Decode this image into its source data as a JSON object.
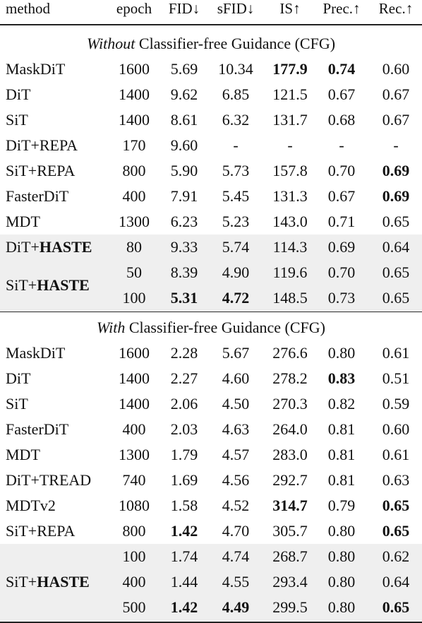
{
  "headers": [
    "method",
    "epoch",
    "FID↓",
    "sFID↓",
    "IS↑",
    "Prec.↑",
    "Rec.↑"
  ],
  "sections": [
    {
      "title_em": "Without",
      "title_rest": " Classifier-free Guidance (CFG)",
      "rows": [
        {
          "method": "MaskDiT",
          "cells": [
            "1600",
            "5.69",
            "10.34",
            "177.9",
            "0.74",
            "0.60"
          ],
          "bold": [
            false,
            false,
            false,
            true,
            true,
            false
          ]
        },
        {
          "method": "DiT",
          "cells": [
            "1400",
            "9.62",
            "6.85",
            "121.5",
            "0.67",
            "0.67"
          ],
          "bold": [
            false,
            false,
            false,
            false,
            false,
            false
          ]
        },
        {
          "method": "SiT",
          "cells": [
            "1400",
            "8.61",
            "6.32",
            "131.7",
            "0.68",
            "0.67"
          ],
          "bold": [
            false,
            false,
            false,
            false,
            false,
            false
          ]
        },
        {
          "method": "DiT+REPA",
          "cells": [
            "170",
            "9.60",
            "-",
            "-",
            "-",
            "-"
          ],
          "bold": [
            false,
            false,
            false,
            false,
            false,
            false
          ]
        },
        {
          "method": "SiT+REPA",
          "cells": [
            "800",
            "5.90",
            "5.73",
            "157.8",
            "0.70",
            "0.69"
          ],
          "bold": [
            false,
            false,
            false,
            false,
            false,
            true
          ]
        },
        {
          "method": "FasterDiT",
          "cells": [
            "400",
            "7.91",
            "5.45",
            "131.3",
            "0.67",
            "0.69"
          ],
          "bold": [
            false,
            false,
            false,
            false,
            false,
            true
          ]
        },
        {
          "method": "MDT",
          "cells": [
            "1300",
            "6.23",
            "5.23",
            "143.0",
            "0.71",
            "0.65"
          ],
          "bold": [
            false,
            false,
            false,
            false,
            false,
            false
          ]
        },
        {
          "method_plain": "DiT+",
          "method_bold": "HASTE",
          "shade": true,
          "cells": [
            "80",
            "9.33",
            "5.74",
            "114.3",
            "0.69",
            "0.64"
          ],
          "bold": [
            false,
            false,
            false,
            false,
            false,
            false
          ]
        },
        {
          "method_plain": "SiT+",
          "method_bold": "HASTE",
          "shade": true,
          "merged_start": 2,
          "cells": [
            "50",
            "8.39",
            "4.90",
            "119.6",
            "0.70",
            "0.65"
          ],
          "bold": [
            false,
            false,
            false,
            false,
            false,
            false
          ]
        },
        {
          "shade": true,
          "merged_cont": true,
          "cells": [
            "100",
            "5.31",
            "4.72",
            "148.5",
            "0.73",
            "0.65"
          ],
          "bold": [
            false,
            true,
            true,
            false,
            false,
            false
          ]
        }
      ]
    },
    {
      "title_em": "With",
      "title_rest": " Classifier-free Guidance (CFG)",
      "rows": [
        {
          "method": "MaskDiT",
          "cells": [
            "1600",
            "2.28",
            "5.67",
            "276.6",
            "0.80",
            "0.61"
          ],
          "bold": [
            false,
            false,
            false,
            false,
            false,
            false
          ]
        },
        {
          "method": "DiT",
          "cells": [
            "1400",
            "2.27",
            "4.60",
            "278.2",
            "0.83",
            "0.51"
          ],
          "bold": [
            false,
            false,
            false,
            false,
            true,
            false
          ]
        },
        {
          "method": "SiT",
          "cells": [
            "1400",
            "2.06",
            "4.50",
            "270.3",
            "0.82",
            "0.59"
          ],
          "bold": [
            false,
            false,
            false,
            false,
            false,
            false
          ]
        },
        {
          "method": "FasterDiT",
          "cells": [
            "400",
            "2.03",
            "4.63",
            "264.0",
            "0.81",
            "0.60"
          ],
          "bold": [
            false,
            false,
            false,
            false,
            false,
            false
          ]
        },
        {
          "method": "MDT",
          "cells": [
            "1300",
            "1.79",
            "4.57",
            "283.0",
            "0.81",
            "0.61"
          ],
          "bold": [
            false,
            false,
            false,
            false,
            false,
            false
          ]
        },
        {
          "method": "DiT+TREAD",
          "cells": [
            "740",
            "1.69",
            "4.56",
            "292.7",
            "0.81",
            "0.63"
          ],
          "bold": [
            false,
            false,
            false,
            false,
            false,
            false
          ]
        },
        {
          "method": "MDTv2",
          "cells": [
            "1080",
            "1.58",
            "4.52",
            "314.7",
            "0.79",
            "0.65"
          ],
          "bold": [
            false,
            false,
            false,
            true,
            false,
            true
          ]
        },
        {
          "method": "SiT+REPA",
          "cells": [
            "800",
            "1.42",
            "4.70",
            "305.7",
            "0.80",
            "0.65"
          ],
          "bold": [
            false,
            true,
            false,
            false,
            false,
            true
          ]
        },
        {
          "method_plain": "SiT+",
          "method_bold": "HASTE",
          "shade": true,
          "merged_start": 3,
          "cells": [
            "100",
            "1.74",
            "4.74",
            "268.7",
            "0.80",
            "0.62"
          ],
          "bold": [
            false,
            false,
            false,
            false,
            false,
            false
          ]
        },
        {
          "shade": true,
          "merged_cont": true,
          "cells": [
            "400",
            "1.44",
            "4.55",
            "293.4",
            "0.80",
            "0.64"
          ],
          "bold": [
            false,
            false,
            false,
            false,
            false,
            false
          ]
        },
        {
          "shade": true,
          "merged_cont": true,
          "cells": [
            "500",
            "1.42",
            "4.49",
            "299.5",
            "0.80",
            "0.65"
          ],
          "bold": [
            false,
            true,
            true,
            false,
            false,
            true
          ]
        }
      ]
    }
  ]
}
